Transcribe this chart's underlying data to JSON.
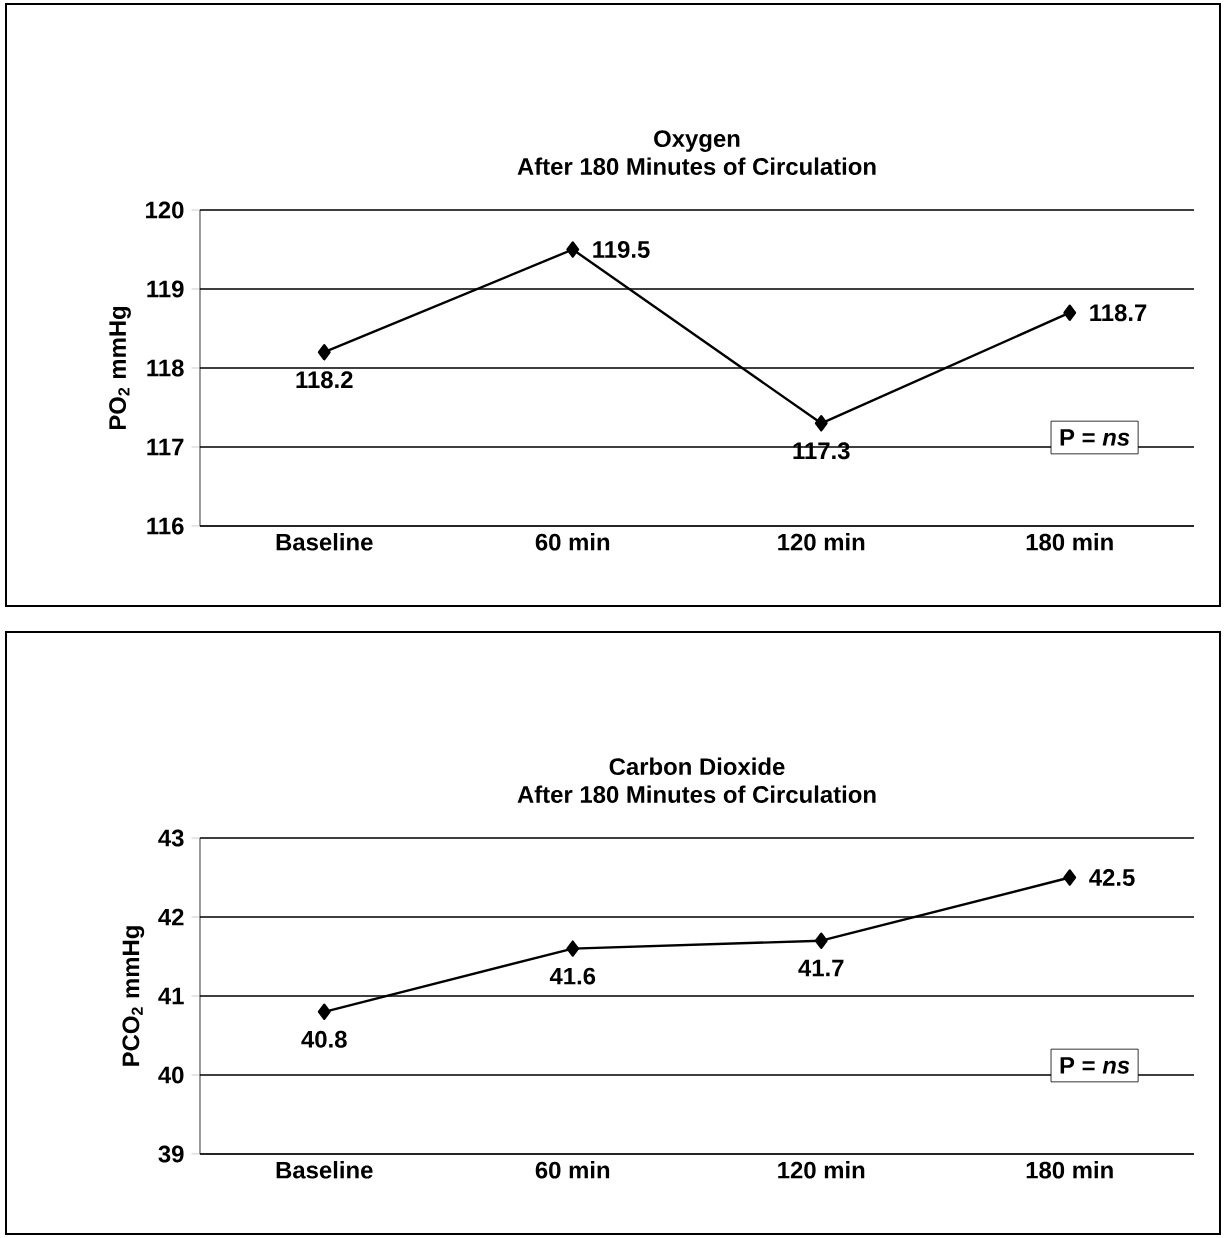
{
  "chart_data": [
    {
      "type": "line",
      "title": "Oxygen",
      "subtitle": "After 180 Minutes of Circulation",
      "ylabel": "PO$_{2}$ mmHg",
      "categories": [
        "Baseline",
        "60 min",
        "120 min",
        "180 min"
      ],
      "series": [
        {
          "color": "#000000",
          "values": [
            118.2,
            119.5,
            117.3,
            118.7
          ]
        }
      ],
      "ylim": [
        116,
        120
      ],
      "yticks": [
        116,
        117,
        118,
        119,
        120
      ],
      "grid": "y",
      "marker": "diamond",
      "line_style": "solid",
      "data_labels": true,
      "annotations": [
        "P = *ns*"
      ]
    },
    {
      "type": "line",
      "title": "Carbon Dioxide",
      "subtitle": "After 180 Minutes of Circulation",
      "ylabel": "PCO$_{2}$ mmHg",
      "categories": [
        "Baseline",
        "60 min",
        "120 min",
        "180 min"
      ],
      "series": [
        {
          "color": "#000000",
          "values": [
            40.8,
            41.6,
            41.7,
            42.5
          ]
        }
      ],
      "ylim": [
        39,
        43
      ],
      "yticks": [
        39,
        40,
        41,
        42,
        43
      ],
      "grid": "y",
      "marker": "diamond",
      "line_style": "solid",
      "data_labels": true,
      "annotations": [
        "P = *ns*"
      ]
    }
  ]
}
